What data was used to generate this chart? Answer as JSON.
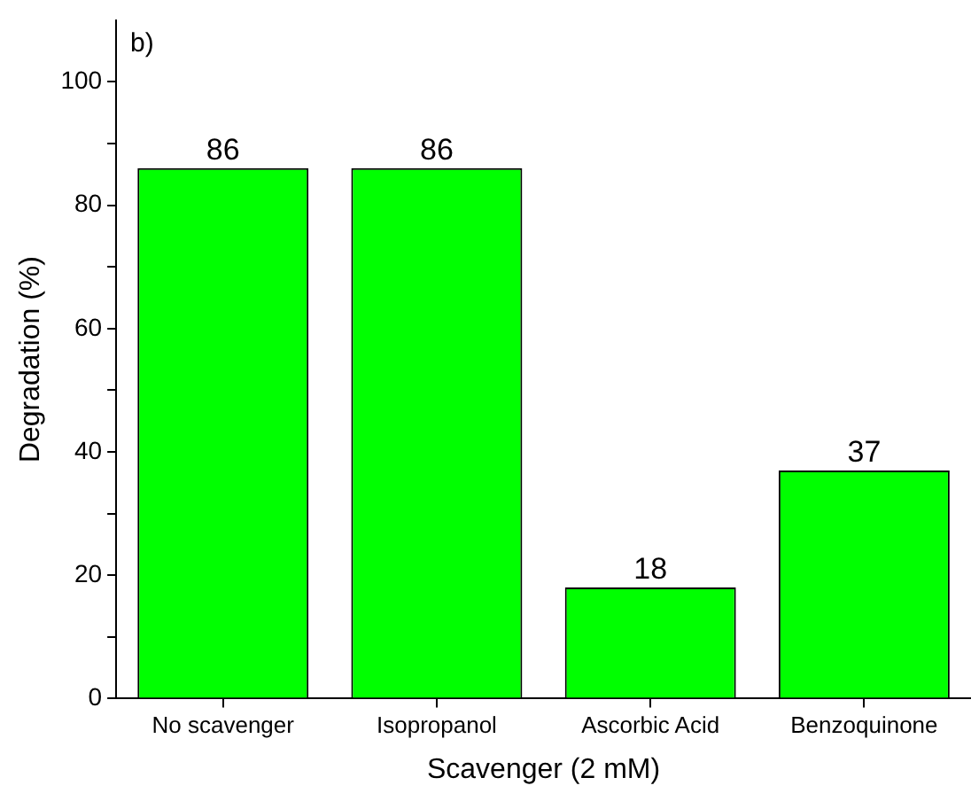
{
  "chart_data": {
    "type": "bar",
    "xlabel": "Scavenger (2 mM)",
    "ylabel": "Degradation (%)",
    "annotations": [
      "b)"
    ],
    "categories": [
      "No scavenger",
      "Isopropanol",
      "Ascorbic Acid",
      "Benzoquinone"
    ],
    "values": [
      86,
      86,
      18,
      37
    ],
    "color": "#00ff00",
    "ylim": [
      0,
      110
    ],
    "yticks": [
      0,
      {
        "value": 10,
        "label": null
      },
      20,
      {
        "value": 30,
        "label": null
      },
      40,
      {
        "value": 50,
        "label": null
      },
      60,
      {
        "value": 70,
        "label": null
      },
      80,
      {
        "value": 90,
        "label": null
      },
      100
    ],
    "grid": false,
    "legend": false,
    "data_labels": true
  }
}
